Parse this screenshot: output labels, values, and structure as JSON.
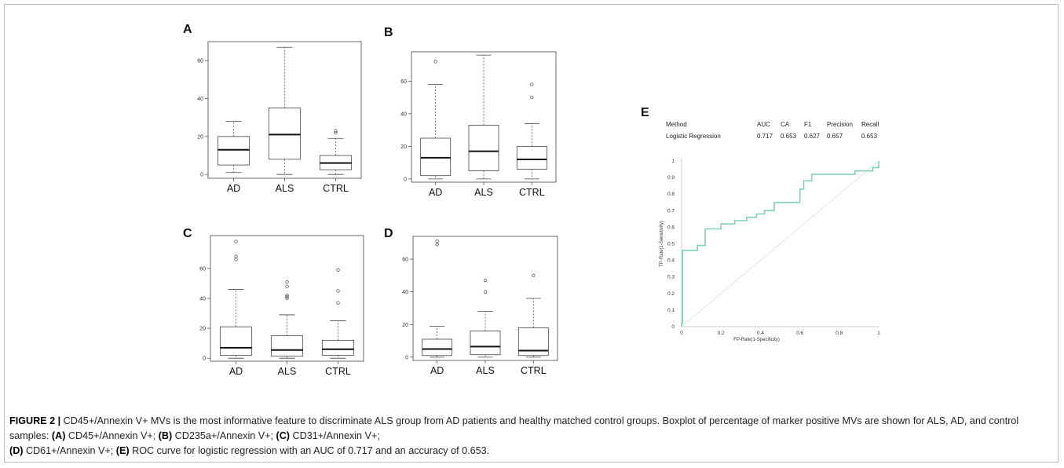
{
  "figure": {
    "caption": {
      "figure_label": "FIGURE 2 |",
      "text_1": " CD45+/Annexin V+ MVs is the most informative feature to discriminate ALS group from AD patients and healthy matched control groups. Boxplot of percentage of marker positive MVs are shown for ALS, AD, and control samples: ",
      "ref_a": "(A)",
      "text_a": " CD45+/Annexin V+; ",
      "ref_b": "(B)",
      "text_b": " CD235a+/Annexin V+; ",
      "ref_c": "(C)",
      "text_c": " CD31+/Annexin V+; ",
      "ref_d": "(D)",
      "text_d": " CD61+/Annexin V+; ",
      "ref_e": "(E)",
      "text_e": " ROC curve for logistic regression with an AUC of 0.717 and an accuracy of 0.653."
    },
    "metrics_table": {
      "headers": [
        "Method",
        "AUC",
        "CA",
        "F1",
        "Precision",
        "Recall"
      ],
      "row": [
        "Logistic Regression",
        "0.717",
        "0.653",
        "0.627",
        "0.657",
        "0.653"
      ]
    }
  },
  "chart_data": [
    {
      "panel": "A",
      "type": "box",
      "categories": [
        "AD",
        "ALS",
        "CTRL"
      ],
      "ylim": [
        -2,
        70
      ],
      "yticks": [
        "0",
        "20",
        "40",
        "60"
      ],
      "ytick_values": [
        0,
        20,
        40,
        60
      ],
      "boxes": [
        {
          "whisker_low": 1,
          "q1": 5,
          "median": 13,
          "q3": 20,
          "whisker_high": 28,
          "outliers": []
        },
        {
          "whisker_low": 0,
          "q1": 8,
          "median": 21,
          "q3": 35,
          "whisker_high": 67,
          "outliers": []
        },
        {
          "whisker_low": 0,
          "q1": 2.5,
          "median": 6,
          "q3": 10,
          "whisker_high": 19,
          "outliers": [
            22,
            23
          ]
        }
      ]
    },
    {
      "panel": "B",
      "type": "box",
      "categories": [
        "AD",
        "ALS",
        "CTRL"
      ],
      "ylim": [
        -2,
        78
      ],
      "yticks": [
        "0",
        "20",
        "40",
        "60"
      ],
      "ytick_values": [
        0,
        20,
        40,
        60
      ],
      "boxes": [
        {
          "whisker_low": 0,
          "q1": 2,
          "median": 13,
          "q3": 25,
          "whisker_high": 58,
          "outliers": [
            72
          ]
        },
        {
          "whisker_low": 0,
          "q1": 5,
          "median": 17,
          "q3": 33,
          "whisker_high": 76,
          "outliers": []
        },
        {
          "whisker_low": 0,
          "q1": 6,
          "median": 12,
          "q3": 20,
          "whisker_high": 34,
          "outliers": [
            50,
            58
          ]
        }
      ]
    },
    {
      "panel": "C",
      "type": "box",
      "categories": [
        "AD",
        "ALS",
        "CTRL"
      ],
      "ylim": [
        -2,
        82
      ],
      "yticks": [
        "0",
        "20",
        "40",
        "60"
      ],
      "ytick_values": [
        0,
        20,
        40,
        60
      ],
      "boxes": [
        {
          "whisker_low": 0,
          "q1": 2,
          "median": 7,
          "q3": 21,
          "whisker_high": 46,
          "outliers": [
            66,
            68,
            78
          ]
        },
        {
          "whisker_low": 0,
          "q1": 1.5,
          "median": 5.5,
          "q3": 15,
          "whisker_high": 29,
          "outliers": [
            40,
            41,
            42,
            48,
            51
          ]
        },
        {
          "whisker_low": 0,
          "q1": 2,
          "median": 6,
          "q3": 12,
          "whisker_high": 25,
          "outliers": [
            37,
            45,
            59
          ]
        }
      ]
    },
    {
      "panel": "D",
      "type": "box",
      "categories": [
        "AD",
        "ALS",
        "CTRL"
      ],
      "ylim": [
        -2,
        74
      ],
      "yticks": [
        "0",
        "20",
        "40",
        "60"
      ],
      "ytick_values": [
        0,
        20,
        40,
        60
      ],
      "boxes": [
        {
          "whisker_low": 0,
          "q1": 1,
          "median": 5,
          "q3": 11,
          "whisker_high": 19,
          "outliers": [
            69,
            71
          ]
        },
        {
          "whisker_low": 0,
          "q1": 1.5,
          "median": 6.5,
          "q3": 16,
          "whisker_high": 28,
          "outliers": [
            40,
            47
          ]
        },
        {
          "whisker_low": 0,
          "q1": 1,
          "median": 4,
          "q3": 18,
          "whisker_high": 36,
          "outliers": [
            50
          ]
        }
      ]
    },
    {
      "panel": "E",
      "type": "line",
      "xlabel": "FP-Rate(1-Specificity)",
      "ylabel": "TP-Rate(1-Sensitivity)",
      "xlim": [
        0,
        1
      ],
      "ylim": [
        0,
        1
      ],
      "xticks": [
        "0",
        "0.2",
        "0.4",
        "0.6",
        "0.8",
        "1"
      ],
      "xtick_values": [
        0,
        0.2,
        0.4,
        0.6,
        0.8,
        1
      ],
      "yticks": [
        "0",
        "0.1",
        "0.2",
        "0.3",
        "0.4",
        "0.5",
        "0.6",
        "0.7",
        "0.8",
        "0.9",
        "1"
      ],
      "ytick_values": [
        0,
        0.1,
        0.2,
        0.3,
        0.4,
        0.5,
        0.6,
        0.7,
        0.8,
        0.9,
        1
      ],
      "series": [
        {
          "name": "Logistic Regression",
          "color": "#7fd3b0",
          "x": [
            0,
            0,
            0.005,
            0.005,
            0.08,
            0.08,
            0.12,
            0.12,
            0.2,
            0.2,
            0.27,
            0.27,
            0.33,
            0.33,
            0.38,
            0.38,
            0.42,
            0.42,
            0.47,
            0.47,
            0.6,
            0.6,
            0.62,
            0.62,
            0.66,
            0.66,
            0.88,
            0.88,
            0.97,
            0.97,
            1,
            1
          ],
          "y": [
            0,
            0.02,
            0.02,
            0.46,
            0.46,
            0.49,
            0.49,
            0.59,
            0.59,
            0.62,
            0.62,
            0.64,
            0.64,
            0.66,
            0.66,
            0.68,
            0.68,
            0.7,
            0.7,
            0.75,
            0.75,
            0.83,
            0.83,
            0.88,
            0.88,
            0.92,
            0.92,
            0.94,
            0.94,
            0.96,
            0.96,
            1
          ]
        },
        {
          "color": "#e4e4e4",
          "x": [
            0,
            1
          ],
          "y": [
            0,
            1
          ]
        }
      ]
    }
  ]
}
